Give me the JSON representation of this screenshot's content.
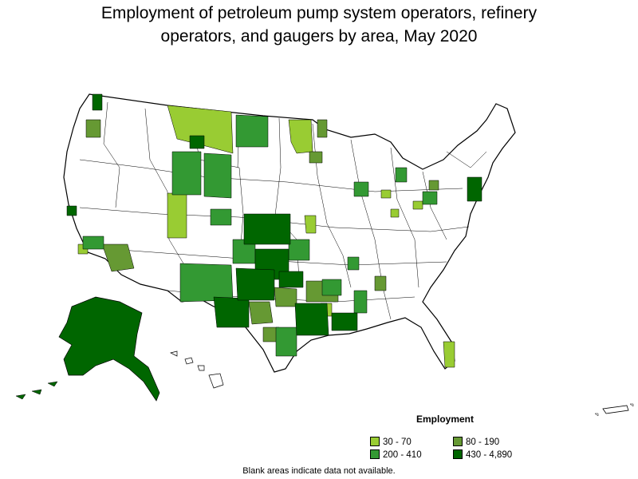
{
  "title": {
    "line1": "Employment of petroleum pump system operators, refinery",
    "line2": "operators, and gaugers by area, May 2020"
  },
  "legend": {
    "title": "Employment",
    "items": [
      {
        "label": "30 - 70",
        "color": "#99cc33"
      },
      {
        "label": "80 - 190",
        "color": "#669933"
      },
      {
        "label": "200 - 410",
        "color": "#339933"
      },
      {
        "label": "430 - 4,890",
        "color": "#006600"
      }
    ]
  },
  "footnote": "Blank areas indicate data not available.",
  "colors": {
    "no_data": "#ffffff",
    "border": "#000000"
  }
}
